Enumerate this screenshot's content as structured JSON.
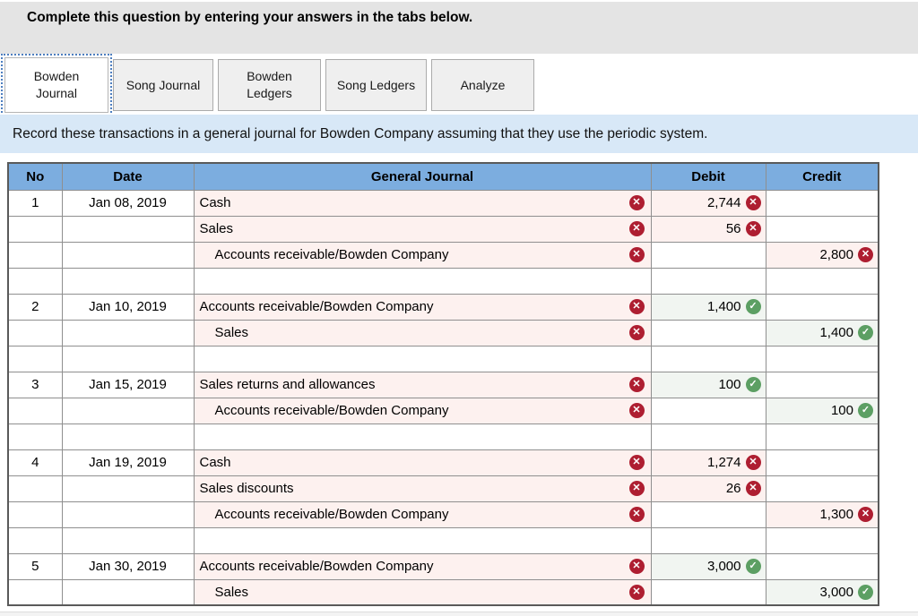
{
  "banner": {
    "text": "Complete this question by entering your answers in the tabs below."
  },
  "tabs": [
    {
      "label": "Bowden Journal",
      "active": true
    },
    {
      "label": "Song Journal",
      "active": false
    },
    {
      "label": "Bowden Ledgers",
      "active": false
    },
    {
      "label": "Song Ledgers",
      "active": false
    },
    {
      "label": "Analyze",
      "active": false
    }
  ],
  "instruction": "Record these transactions in a general journal for Bowden Company assuming that they use the periodic system.",
  "icons": {
    "wrong": {
      "name": "x-circle-icon",
      "glyph": "✕",
      "color": "#ae1e31"
    },
    "correct": {
      "name": "check-circle-icon",
      "glyph": "✓",
      "color": "#5c9f63"
    }
  },
  "colors": {
    "banner_bg": "#e4e4e4",
    "instruction_bg": "#d8e8f7",
    "table_header_bg": "#7caddf",
    "cell_wrong_bg": "#fdf1ef",
    "cell_correct_bg": "#f1f5f1"
  },
  "journal_table": {
    "columns": [
      "No",
      "Date",
      "General Journal",
      "Debit",
      "Credit"
    ],
    "rows": [
      {
        "no": "1",
        "date": "Jan 08, 2019",
        "account": "Cash",
        "indent": false,
        "account_mark": "wrong",
        "debit": {
          "value": "2,744",
          "mark": "wrong"
        },
        "credit": null
      },
      {
        "no": "",
        "date": "",
        "account": "Sales",
        "indent": false,
        "account_mark": "wrong",
        "debit": {
          "value": "56",
          "mark": "wrong"
        },
        "credit": null
      },
      {
        "no": "",
        "date": "",
        "account": "Accounts receivable/Bowden Company",
        "indent": true,
        "account_mark": "wrong",
        "debit": null,
        "credit": {
          "value": "2,800",
          "mark": "wrong"
        }
      },
      {
        "spacer": true
      },
      {
        "no": "2",
        "date": "Jan 10, 2019",
        "account": "Accounts receivable/Bowden Company",
        "indent": false,
        "account_mark": "wrong",
        "debit": {
          "value": "1,400",
          "mark": "correct"
        },
        "credit": null
      },
      {
        "no": "",
        "date": "",
        "account": "Sales",
        "indent": true,
        "account_mark": "wrong",
        "debit": null,
        "credit": {
          "value": "1,400",
          "mark": "correct"
        }
      },
      {
        "spacer": true
      },
      {
        "no": "3",
        "date": "Jan 15, 2019",
        "account": "Sales returns and allowances",
        "indent": false,
        "account_mark": "wrong",
        "debit": {
          "value": "100",
          "mark": "correct"
        },
        "credit": null
      },
      {
        "no": "",
        "date": "",
        "account": "Accounts receivable/Bowden Company",
        "indent": true,
        "account_mark": "wrong",
        "debit": null,
        "credit": {
          "value": "100",
          "mark": "correct"
        }
      },
      {
        "spacer": true
      },
      {
        "no": "4",
        "date": "Jan 19, 2019",
        "account": "Cash",
        "indent": false,
        "account_mark": "wrong",
        "debit": {
          "value": "1,274",
          "mark": "wrong"
        },
        "credit": null
      },
      {
        "no": "",
        "date": "",
        "account": "Sales discounts",
        "indent": false,
        "account_mark": "wrong",
        "debit": {
          "value": "26",
          "mark": "wrong"
        },
        "credit": null
      },
      {
        "no": "",
        "date": "",
        "account": "Accounts receivable/Bowden Company",
        "indent": true,
        "account_mark": "wrong",
        "debit": null,
        "credit": {
          "value": "1,300",
          "mark": "wrong"
        }
      },
      {
        "spacer": true
      },
      {
        "no": "5",
        "date": "Jan 30, 2019",
        "account": "Accounts receivable/Bowden Company",
        "indent": false,
        "account_mark": "wrong",
        "debit": {
          "value": "3,000",
          "mark": "correct"
        },
        "credit": null
      },
      {
        "no": "",
        "date": "",
        "account": "Sales",
        "indent": true,
        "account_mark": "wrong",
        "debit": null,
        "credit": {
          "value": "3,000",
          "mark": "correct"
        }
      }
    ]
  }
}
